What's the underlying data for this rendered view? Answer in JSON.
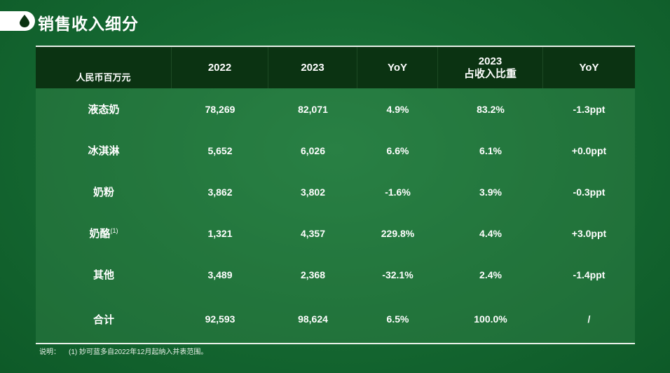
{
  "title": "销售收入细分",
  "header": {
    "unit": "人民币百万元",
    "cols": [
      "2022",
      "2023",
      "YoY",
      "2023\n占收入比重",
      "YoY"
    ]
  },
  "rows": [
    {
      "name": "液态奶",
      "sup": "",
      "v2022": "78,269",
      "v2023": "82,071",
      "yoy": "4.9%",
      "share": "83.2%",
      "share_yoy": "-1.3ppt"
    },
    {
      "name": "冰淇淋",
      "sup": "",
      "v2022": "5,652",
      "v2023": "6,026",
      "yoy": "6.6%",
      "share": "6.1%",
      "share_yoy": "+0.0ppt"
    },
    {
      "name": "奶粉",
      "sup": "",
      "v2022": "3,862",
      "v2023": "3,802",
      "yoy": "-1.6%",
      "share": "3.9%",
      "share_yoy": "-0.3ppt"
    },
    {
      "name": "奶酪",
      "sup": "(1)",
      "v2022": "1,321",
      "v2023": "4,357",
      "yoy": "229.8%",
      "share": "4.4%",
      "share_yoy": "+3.0ppt"
    },
    {
      "name": "其他",
      "sup": "",
      "v2022": "3,489",
      "v2023": "2,368",
      "yoy": "-32.1%",
      "share": "2.4%",
      "share_yoy": "-1.4ppt"
    },
    {
      "name": "合计",
      "sup": "",
      "v2022": "92,593",
      "v2023": "98,624",
      "yoy": "6.5%",
      "share": "100.0%",
      "share_yoy": "/"
    }
  ],
  "note": {
    "label": "说明：",
    "text": "(1) 妙可蓝多自2022年12月起纳入并表范围。"
  },
  "colors": {
    "header_bg": "#0b3312",
    "accent": "#166a33"
  }
}
